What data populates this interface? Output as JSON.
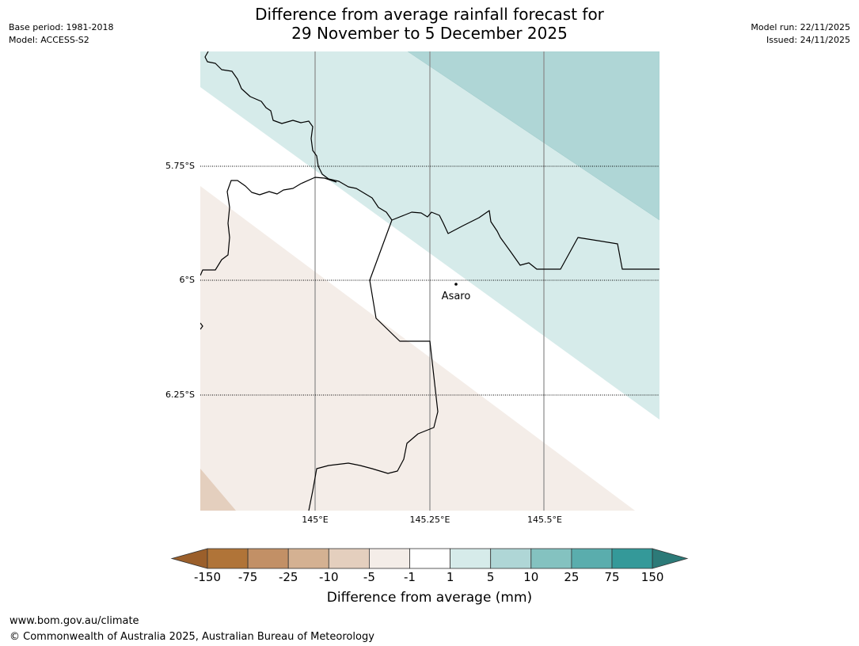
{
  "title": {
    "line1": "Difference from average rainfall forecast for",
    "line2": "29 November to 5 December 2025"
  },
  "meta": {
    "base_period": "Base period: 1981-2018",
    "model": "Model: ACCESS-S2",
    "model_run": "Model run: 22/11/2025",
    "issued": "Issued: 24/11/2025"
  },
  "map": {
    "lat_labels": [
      "5.75°S",
      "6°S",
      "6.25°S"
    ],
    "lon_labels": [
      "145°E",
      "145.25°E",
      "145.5°E"
    ],
    "place": {
      "name": "Asaro"
    }
  },
  "colorbar": {
    "label": "Difference from average (mm)",
    "ticks": [
      "-150",
      "-75",
      "-25",
      "-10",
      "-5",
      "-1",
      "1",
      "5",
      "10",
      "25",
      "75",
      "150"
    ],
    "colors": [
      "#b07438",
      "#c29066",
      "#d4b192",
      "#e4cfbe",
      "#f4ede8",
      "#ffffff",
      "#d6ebea",
      "#afd6d6",
      "#84c2c0",
      "#5aadad",
      "#349999"
    ],
    "under_color": "#9b5f2b",
    "over_color": "#2c7a78"
  },
  "footer": {
    "url": "www.bom.gov.au/climate",
    "copyright": "© Commonwealth of Australia 2025, Australian Bureau of Meteorology"
  }
}
